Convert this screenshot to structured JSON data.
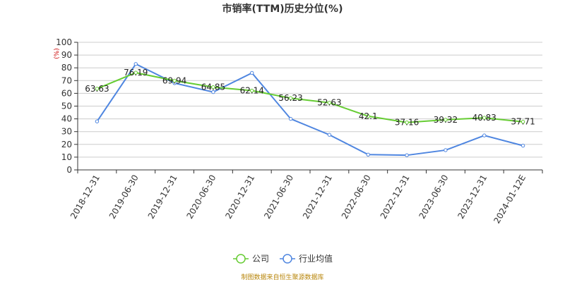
{
  "chart_data": {
    "type": "line",
    "title": "市销率(TTM)历史分位(%)",
    "unit_label": "(%)",
    "categories": [
      "2018-12-31",
      "2019-06-30",
      "2019-12-31",
      "2020-06-30",
      "2020-12-31",
      "2021-06-30",
      "2021-12-31",
      "2022-06-30",
      "2022-12-31",
      "2023-06-30",
      "2023-12-31",
      "2024-01-12E"
    ],
    "ylim": [
      0,
      100
    ],
    "yticks": [
      0,
      10,
      20,
      30,
      40,
      50,
      60,
      70,
      80,
      90,
      100
    ],
    "grid": true,
    "legend_position": "bottom",
    "series": [
      {
        "name": "公司",
        "color": "#66cc33",
        "values": [
          63.63,
          76.19,
          69.94,
          64.85,
          62.14,
          56.23,
          52.63,
          42.1,
          37.16,
          39.32,
          40.83,
          37.71
        ],
        "labels": [
          "63.63",
          "76.19",
          "69.94",
          "64.85",
          "62.14",
          "56.23",
          "52.63",
          "42.1",
          "37.16",
          "39.32",
          "40.83",
          "37.71"
        ]
      },
      {
        "name": "行业均值",
        "color": "#4f86e0",
        "values": [
          38,
          83,
          68,
          61,
          76,
          40,
          27.5,
          12,
          11.5,
          15.5,
          27,
          19
        ]
      }
    ]
  },
  "source_text": "制图数据来自恒生聚源数据库"
}
